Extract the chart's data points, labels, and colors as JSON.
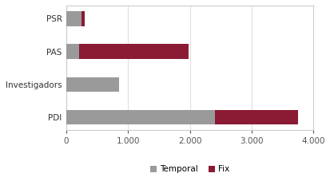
{
  "categories": [
    "PDI",
    "Investigadors",
    "PAS",
    "PSR"
  ],
  "temporal": [
    2400,
    850,
    200,
    240
  ],
  "fix": [
    1350,
    0,
    1780,
    55
  ],
  "color_temporal": "#9a9a9a",
  "color_fix": "#8B1A35",
  "xlim": [
    0,
    4000
  ],
  "xticks": [
    0,
    1000,
    2000,
    3000,
    4000
  ],
  "xtick_labels": [
    "0",
    "1.000",
    "2.000",
    "3.000",
    "4.000"
  ],
  "legend_labels": [
    "Temporal",
    "Fix"
  ],
  "background_color": "#ffffff",
  "plot_bg_color": "#ffffff",
  "bar_height": 0.45,
  "grid_color": "#e0e0e0",
  "border_color": "#cccccc",
  "tick_color": "#555555",
  "label_fontsize": 7.5
}
